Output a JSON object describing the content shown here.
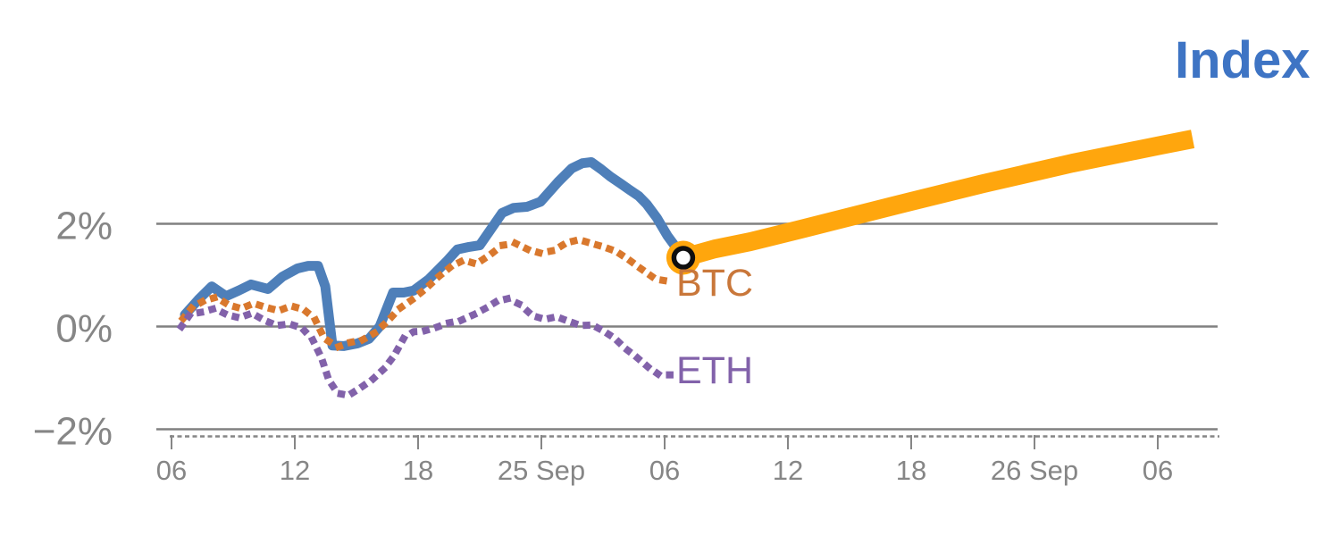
{
  "labels": {
    "index": "Index",
    "btc": "BTC",
    "eth": "ETH"
  },
  "colors": {
    "index_line": "#4e7fb9",
    "index_label": "#3e74c4",
    "btc": "#d9782d",
    "btc_label": "#c9773a",
    "eth": "#8262aa",
    "projection": "#ffa60d",
    "grid": "#808080",
    "axis_text": "#868686",
    "marker_ring": "#0f0f0f",
    "marker_core": "#ffffff"
  },
  "chart_data": {
    "type": "line",
    "title": "Index",
    "x_axis": {
      "unit": "time (6-hour major ticks, hourly minor ticks)",
      "range": [
        5.26,
        56.9
      ],
      "tick_positions": [
        6,
        12,
        18,
        24,
        30,
        36,
        42,
        48,
        54
      ],
      "tick_labels": [
        "06",
        "12",
        "18",
        "25 Sep",
        "06",
        "12",
        "18",
        "26 Sep",
        "06"
      ]
    },
    "y_axis": {
      "unit": "%",
      "range": [
        -2,
        4
      ],
      "tick_positions": [
        2,
        0,
        -2
      ],
      "tick_labels": [
        "2%",
        "0%",
        "−2%"
      ]
    },
    "grid": "horizontal gridlines at 2%, 0%, -2%",
    "legend_position": "inline end-of-line labels",
    "series": [
      {
        "name": "Index (history)",
        "label": "",
        "style": "solid",
        "color_key": "index_line",
        "points": [
          [
            6.65,
            0.23
          ],
          [
            7.3,
            0.52
          ],
          [
            7.96,
            0.78
          ],
          [
            8.65,
            0.59
          ],
          [
            9.26,
            0.7
          ],
          [
            9.87,
            0.82
          ],
          [
            10.7,
            0.73
          ],
          [
            11.4,
            0.97
          ],
          [
            12.13,
            1.13
          ],
          [
            12.65,
            1.18
          ],
          [
            13.13,
            1.18
          ],
          [
            13.48,
            0.78
          ],
          [
            13.83,
            -0.37
          ],
          [
            14.39,
            -0.38
          ],
          [
            15.04,
            -0.33
          ],
          [
            15.61,
            -0.24
          ],
          [
            16.13,
            0.0
          ],
          [
            16.78,
            0.66
          ],
          [
            17.3,
            0.66
          ],
          [
            17.78,
            0.7
          ],
          [
            18.52,
            0.92
          ],
          [
            19.39,
            1.27
          ],
          [
            19.91,
            1.5
          ],
          [
            20.48,
            1.55
          ],
          [
            21.0,
            1.58
          ],
          [
            21.57,
            1.91
          ],
          [
            22.09,
            2.21
          ],
          [
            22.65,
            2.31
          ],
          [
            23.3,
            2.33
          ],
          [
            23.96,
            2.43
          ],
          [
            24.83,
            2.82
          ],
          [
            25.48,
            3.08
          ],
          [
            26.0,
            3.18
          ],
          [
            26.43,
            3.2
          ],
          [
            26.91,
            3.06
          ],
          [
            27.35,
            2.92
          ],
          [
            27.87,
            2.78
          ],
          [
            28.3,
            2.66
          ],
          [
            28.74,
            2.54
          ],
          [
            29.13,
            2.38
          ],
          [
            29.61,
            2.12
          ],
          [
            30.13,
            1.77
          ],
          [
            30.57,
            1.53
          ],
          [
            30.91,
            1.34
          ]
        ]
      },
      {
        "name": "BTC",
        "label": "BTC",
        "style": "dotted",
        "color_key": "btc",
        "label_color_key": "btc_label",
        "points": [
          [
            6.57,
            0.16
          ],
          [
            7.0,
            0.37
          ],
          [
            7.57,
            0.5
          ],
          [
            8.17,
            0.57
          ],
          [
            8.78,
            0.42
          ],
          [
            9.39,
            0.35
          ],
          [
            10.0,
            0.45
          ],
          [
            10.61,
            0.37
          ],
          [
            11.22,
            0.31
          ],
          [
            11.83,
            0.4
          ],
          [
            12.43,
            0.33
          ],
          [
            12.96,
            0.16
          ],
          [
            13.43,
            -0.23
          ],
          [
            14.09,
            -0.4
          ],
          [
            14.7,
            -0.31
          ],
          [
            15.3,
            -0.26
          ],
          [
            15.91,
            -0.12
          ],
          [
            16.48,
            0.09
          ],
          [
            17.09,
            0.35
          ],
          [
            17.7,
            0.52
          ],
          [
            18.35,
            0.73
          ],
          [
            19.0,
            0.97
          ],
          [
            19.61,
            1.17
          ],
          [
            20.22,
            1.29
          ],
          [
            20.83,
            1.22
          ],
          [
            21.48,
            1.39
          ],
          [
            22.09,
            1.58
          ],
          [
            22.74,
            1.62
          ],
          [
            23.35,
            1.5
          ],
          [
            23.96,
            1.43
          ],
          [
            24.61,
            1.48
          ],
          [
            25.22,
            1.63
          ],
          [
            25.83,
            1.69
          ],
          [
            26.43,
            1.62
          ],
          [
            27.04,
            1.55
          ],
          [
            27.65,
            1.46
          ],
          [
            28.26,
            1.3
          ],
          [
            28.83,
            1.13
          ],
          [
            29.39,
            0.97
          ],
          [
            29.91,
            0.9
          ],
          [
            30.35,
            0.87
          ]
        ]
      },
      {
        "name": "ETH",
        "label": "ETH",
        "style": "dotted",
        "color_key": "eth",
        "label_color_key": "eth",
        "points": [
          [
            6.48,
            0.0
          ],
          [
            6.91,
            0.24
          ],
          [
            7.48,
            0.28
          ],
          [
            8.09,
            0.35
          ],
          [
            8.7,
            0.23
          ],
          [
            9.3,
            0.17
          ],
          [
            9.91,
            0.26
          ],
          [
            10.52,
            0.12
          ],
          [
            11.13,
            0.02
          ],
          [
            11.74,
            0.05
          ],
          [
            12.35,
            -0.03
          ],
          [
            12.87,
            -0.26
          ],
          [
            13.3,
            -0.61
          ],
          [
            13.65,
            -1.04
          ],
          [
            14.09,
            -1.3
          ],
          [
            14.61,
            -1.34
          ],
          [
            15.17,
            -1.2
          ],
          [
            15.78,
            -1.03
          ],
          [
            16.35,
            -0.82
          ],
          [
            16.83,
            -0.57
          ],
          [
            17.3,
            -0.23
          ],
          [
            17.78,
            -0.1
          ],
          [
            18.26,
            -0.09
          ],
          [
            18.87,
            -0.02
          ],
          [
            19.48,
            0.07
          ],
          [
            20.09,
            0.12
          ],
          [
            20.7,
            0.23
          ],
          [
            21.26,
            0.35
          ],
          [
            21.83,
            0.49
          ],
          [
            22.35,
            0.54
          ],
          [
            22.96,
            0.43
          ],
          [
            23.57,
            0.21
          ],
          [
            24.17,
            0.14
          ],
          [
            24.74,
            0.19
          ],
          [
            25.35,
            0.1
          ],
          [
            25.91,
            0.02
          ],
          [
            26.48,
            0.03
          ],
          [
            27.04,
            -0.09
          ],
          [
            27.57,
            -0.23
          ],
          [
            28.09,
            -0.43
          ],
          [
            28.61,
            -0.59
          ],
          [
            29.17,
            -0.78
          ],
          [
            29.74,
            -0.94
          ],
          [
            30.26,
            -0.94
          ]
        ]
      },
      {
        "name": "Index (projection)",
        "label": "Index",
        "style": "band",
        "color_key": "projection",
        "label_color_key": "index_label",
        "points": [
          [
            30.91,
            1.34
          ],
          [
            32.43,
            1.51
          ],
          [
            34.17,
            1.65
          ],
          [
            36.78,
            1.91
          ],
          [
            41.13,
            2.35
          ],
          [
            45.48,
            2.78
          ],
          [
            49.83,
            3.18
          ],
          [
            54.17,
            3.53
          ],
          [
            55.7,
            3.65
          ]
        ]
      }
    ],
    "marker": {
      "series": "Index",
      "x": 30.91,
      "y": 1.34,
      "style": "black ring on orange dot"
    }
  }
}
